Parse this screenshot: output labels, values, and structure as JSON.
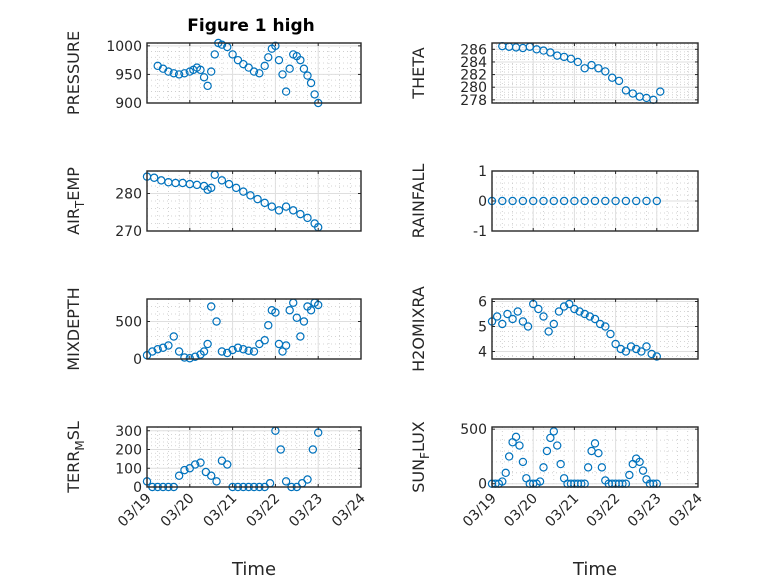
{
  "figure": {
    "title": "Figure 1 high",
    "marker_color": "#0072BD",
    "axis_color": "#262626"
  },
  "chart_data": [
    {
      "type": "scatter",
      "ylabel": "PRESSURE",
      "ylim": [
        900,
        1005
      ],
      "yticks": [
        900,
        950,
        1000
      ],
      "ytick_labels": [
        "900",
        "950",
        "1000"
      ],
      "grid": true,
      "x": [
        "03/19 06:00",
        "03/19 09:00",
        "03/19 12:00",
        "03/19 15:00",
        "03/19 18:00",
        "03/19 21:00",
        "03/20 00:00",
        "03/20 02:00",
        "03/20 04:00",
        "03/20 06:00",
        "03/20 08:00",
        "03/20 10:00",
        "03/20 12:00",
        "03/20 14:00",
        "03/20 16:00",
        "03/20 18:00",
        "03/20 21:00",
        "03/21 00:00",
        "03/21 03:00",
        "03/21 06:00",
        "03/21 09:00",
        "03/21 12:00",
        "03/21 15:00",
        "03/21 18:00",
        "03/21 20:00",
        "03/21 22:00",
        "03/22 00:00",
        "03/22 02:00",
        "03/22 04:00",
        "03/22 06:00",
        "03/22 08:00",
        "03/22 10:00",
        "03/22 12:00",
        "03/22 14:00",
        "03/22 16:00",
        "03/22 18:00",
        "03/22 20:00",
        "03/22 22:00",
        "03/23 00:00"
      ],
      "y": [
        965,
        960,
        955,
        952,
        950,
        952,
        955,
        958,
        962,
        958,
        945,
        930,
        955,
        985,
        1005,
        1002,
        998,
        985,
        975,
        968,
        962,
        955,
        952,
        965,
        980,
        995,
        1000,
        975,
        950,
        920,
        960,
        985,
        982,
        975,
        960,
        948,
        935,
        915,
        900
      ]
    },
    {
      "type": "scatter",
      "ylabel": "THETA",
      "ylim": [
        277.5,
        287
      ],
      "yticks": [
        278,
        280,
        282,
        284,
        286
      ],
      "ytick_labels": [
        "278",
        "280",
        "282",
        "284",
        "286"
      ],
      "grid": true,
      "x": [
        "03/19 06:00",
        "03/19 10:00",
        "03/19 14:00",
        "03/19 18:00",
        "03/19 22:00",
        "03/20 02:00",
        "03/20 06:00",
        "03/20 10:00",
        "03/20 14:00",
        "03/20 18:00",
        "03/20 22:00",
        "03/21 02:00",
        "03/21 06:00",
        "03/21 10:00",
        "03/21 14:00",
        "03/21 18:00",
        "03/21 22:00",
        "03/22 02:00",
        "03/22 06:00",
        "03/22 10:00",
        "03/22 14:00",
        "03/22 18:00",
        "03/22 22:00",
        "03/23 02:00"
      ],
      "y": [
        286.5,
        286.4,
        286.3,
        286.2,
        286.4,
        286.0,
        285.8,
        285.5,
        285.0,
        284.8,
        284.5,
        284.0,
        283.0,
        283.5,
        283.0,
        282.5,
        281.5,
        281.0,
        279.5,
        279.0,
        278.5,
        278.3,
        278.0,
        279.3
      ]
    },
    {
      "type": "scatter",
      "ylabel": "AIR_TEMP",
      "ylabel_display": "AIR",
      "ylabel_sub": "T",
      "ylabel_tail": "EMP",
      "ylim": [
        270,
        286
      ],
      "yticks": [
        270,
        280
      ],
      "ytick_labels": [
        "270",
        "280"
      ],
      "grid": true,
      "x": [
        "03/19 00:00",
        "03/19 04:00",
        "03/19 08:00",
        "03/19 12:00",
        "03/19 16:00",
        "03/19 20:00",
        "03/20 00:00",
        "03/20 04:00",
        "03/20 08:00",
        "03/20 10:00",
        "03/20 12:00",
        "03/20 14:00",
        "03/20 18:00",
        "03/20 22:00",
        "03/21 02:00",
        "03/21 06:00",
        "03/21 10:00",
        "03/21 14:00",
        "03/21 18:00",
        "03/21 22:00",
        "03/22 02:00",
        "03/22 06:00",
        "03/22 10:00",
        "03/22 14:00",
        "03/22 18:00",
        "03/22 22:00",
        "03/23 00:00"
      ],
      "y": [
        284.5,
        284.2,
        283.5,
        283.0,
        282.8,
        282.8,
        282.5,
        282.3,
        282.0,
        281.0,
        281.5,
        285.0,
        283.5,
        282.5,
        281.5,
        280.5,
        279.5,
        278.5,
        277.5,
        276.5,
        275.5,
        276.5,
        275.5,
        274.5,
        273.5,
        272.0,
        271.0
      ]
    },
    {
      "type": "scatter",
      "ylabel": "RAINFALL",
      "ylim": [
        -1,
        1
      ],
      "yticks": [
        -1,
        0,
        1
      ],
      "ytick_labels": [
        "-1",
        "0",
        "1"
      ],
      "grid": true,
      "x": [
        "03/19 00:00",
        "03/19 06:00",
        "03/19 12:00",
        "03/19 18:00",
        "03/20 00:00",
        "03/20 06:00",
        "03/20 12:00",
        "03/20 18:00",
        "03/21 00:00",
        "03/21 06:00",
        "03/21 12:00",
        "03/21 18:00",
        "03/22 00:00",
        "03/22 06:00",
        "03/22 12:00",
        "03/22 18:00",
        "03/23 00:00"
      ],
      "y": [
        0,
        0,
        0,
        0,
        0,
        0,
        0,
        0,
        0,
        0,
        0,
        0,
        0,
        0,
        0,
        0,
        0
      ]
    },
    {
      "type": "scatter",
      "ylabel": "MIXDEPTH",
      "ylim": [
        0,
        800
      ],
      "yticks": [
        0,
        500
      ],
      "ytick_labels": [
        "0",
        "500"
      ],
      "grid": true,
      "x": [
        "03/19 00:00",
        "03/19 03:00",
        "03/19 06:00",
        "03/19 09:00",
        "03/19 12:00",
        "03/19 15:00",
        "03/19 18:00",
        "03/19 21:00",
        "03/20 00:00",
        "03/20 03:00",
        "03/20 06:00",
        "03/20 08:00",
        "03/20 10:00",
        "03/20 12:00",
        "03/20 15:00",
        "03/20 18:00",
        "03/20 21:00",
        "03/21 00:00",
        "03/21 03:00",
        "03/21 06:00",
        "03/21 09:00",
        "03/21 12:00",
        "03/21 15:00",
        "03/21 18:00",
        "03/21 20:00",
        "03/21 22:00",
        "03/22 00:00",
        "03/22 02:00",
        "03/22 04:00",
        "03/22 06:00",
        "03/22 08:00",
        "03/22 10:00",
        "03/22 12:00",
        "03/22 14:00",
        "03/22 16:00",
        "03/22 18:00",
        "03/22 20:00",
        "03/22 22:00",
        "03/23 00:00"
      ],
      "y": [
        50,
        100,
        130,
        150,
        180,
        300,
        100,
        20,
        10,
        30,
        60,
        100,
        200,
        700,
        500,
        100,
        80,
        120,
        150,
        130,
        110,
        100,
        200,
        250,
        450,
        650,
        620,
        200,
        100,
        180,
        650,
        750,
        550,
        300,
        500,
        700,
        650,
        750,
        720
      ]
    },
    {
      "type": "scatter",
      "ylabel": "H2OMIXRA",
      "ylim": [
        3.7,
        6.1
      ],
      "yticks": [
        4,
        5,
        6
      ],
      "ytick_labels": [
        "4",
        "5",
        "6"
      ],
      "grid": true,
      "x": [
        "03/19 00:00",
        "03/19 03:00",
        "03/19 06:00",
        "03/19 09:00",
        "03/19 12:00",
        "03/19 15:00",
        "03/19 18:00",
        "03/19 21:00",
        "03/20 00:00",
        "03/20 03:00",
        "03/20 06:00",
        "03/20 09:00",
        "03/20 12:00",
        "03/20 15:00",
        "03/20 18:00",
        "03/20 21:00",
        "03/21 00:00",
        "03/21 03:00",
        "03/21 06:00",
        "03/21 09:00",
        "03/21 12:00",
        "03/21 15:00",
        "03/21 18:00",
        "03/21 21:00",
        "03/22 00:00",
        "03/22 03:00",
        "03/22 06:00",
        "03/22 09:00",
        "03/22 12:00",
        "03/22 15:00",
        "03/22 18:00",
        "03/22 21:00",
        "03/23 00:00"
      ],
      "y": [
        5.2,
        5.4,
        5.1,
        5.5,
        5.3,
        5.6,
        5.2,
        5.0,
        5.9,
        5.7,
        5.4,
        4.8,
        5.1,
        5.6,
        5.8,
        5.9,
        5.7,
        5.6,
        5.5,
        5.4,
        5.3,
        5.1,
        5.0,
        4.7,
        4.3,
        4.1,
        4.0,
        4.2,
        4.1,
        4.0,
        4.2,
        3.9,
        3.8
      ]
    },
    {
      "type": "scatter",
      "ylabel": "TERR_MSL",
      "ylabel_display": "TERR",
      "ylabel_sub": "M",
      "ylabel_tail": "SL",
      "ylim": [
        0,
        320
      ],
      "yticks": [
        0,
        100,
        200,
        300
      ],
      "ytick_labels": [
        "0",
        "100",
        "200",
        "300"
      ],
      "grid": true,
      "x": [
        "03/19 00:00",
        "03/19 03:00",
        "03/19 06:00",
        "03/19 09:00",
        "03/19 12:00",
        "03/19 15:00",
        "03/19 18:00",
        "03/19 21:00",
        "03/20 00:00",
        "03/20 03:00",
        "03/20 06:00",
        "03/20 09:00",
        "03/20 12:00",
        "03/20 15:00",
        "03/20 18:00",
        "03/20 21:00",
        "03/21 00:00",
        "03/21 03:00",
        "03/21 06:00",
        "03/21 09:00",
        "03/21 12:00",
        "03/21 15:00",
        "03/21 18:00",
        "03/21 21:00",
        "03/22 00:00",
        "03/22 03:00",
        "03/22 06:00",
        "03/22 09:00",
        "03/22 12:00",
        "03/22 15:00",
        "03/22 18:00",
        "03/22 21:00",
        "03/23 00:00"
      ],
      "y": [
        30,
        0,
        0,
        0,
        0,
        0,
        60,
        90,
        100,
        120,
        130,
        80,
        60,
        30,
        140,
        120,
        0,
        0,
        0,
        0,
        0,
        0,
        0,
        20,
        300,
        200,
        30,
        0,
        0,
        20,
        40,
        200,
        290
      ]
    },
    {
      "type": "scatter",
      "ylabel": "SUN_FLUX",
      "ylabel_display": "SUN",
      "ylabel_sub": "F",
      "ylabel_tail": "LUX",
      "ylim": [
        -30,
        520
      ],
      "yticks": [
        0,
        500
      ],
      "ytick_labels": [
        "0",
        "500"
      ],
      "grid": true,
      "x": [
        "03/19 00:00",
        "03/19 02:00",
        "03/19 04:00",
        "03/19 06:00",
        "03/19 08:00",
        "03/19 10:00",
        "03/19 12:00",
        "03/19 14:00",
        "03/19 16:00",
        "03/19 18:00",
        "03/19 20:00",
        "03/19 22:00",
        "03/20 00:00",
        "03/20 02:00",
        "03/20 04:00",
        "03/20 06:00",
        "03/20 08:00",
        "03/20 10:00",
        "03/20 12:00",
        "03/20 14:00",
        "03/20 16:00",
        "03/20 18:00",
        "03/20 20:00",
        "03/20 22:00",
        "03/21 00:00",
        "03/21 02:00",
        "03/21 04:00",
        "03/21 06:00",
        "03/21 08:00",
        "03/21 10:00",
        "03/21 12:00",
        "03/21 14:00",
        "03/21 16:00",
        "03/21 18:00",
        "03/21 20:00",
        "03/21 22:00",
        "03/22 00:00",
        "03/22 02:00",
        "03/22 04:00",
        "03/22 06:00",
        "03/22 08:00",
        "03/22 10:00",
        "03/22 12:00",
        "03/22 14:00",
        "03/22 16:00",
        "03/22 18:00",
        "03/22 20:00",
        "03/22 22:00",
        "03/23 00:00"
      ],
      "y": [
        0,
        0,
        0,
        20,
        100,
        250,
        380,
        430,
        350,
        200,
        50,
        0,
        0,
        0,
        20,
        150,
        300,
        420,
        480,
        350,
        180,
        50,
        0,
        0,
        0,
        0,
        0,
        0,
        150,
        300,
        370,
        280,
        150,
        30,
        0,
        0,
        0,
        0,
        0,
        0,
        80,
        180,
        230,
        200,
        120,
        40,
        0,
        0,
        0
      ]
    }
  ],
  "x_axis": {
    "xlim": [
      "03/19 00:00",
      "03/24 00:00"
    ],
    "ticks": [
      "03/19",
      "03/20",
      "03/21",
      "03/22",
      "03/23",
      "03/24"
    ],
    "label": "Time"
  }
}
